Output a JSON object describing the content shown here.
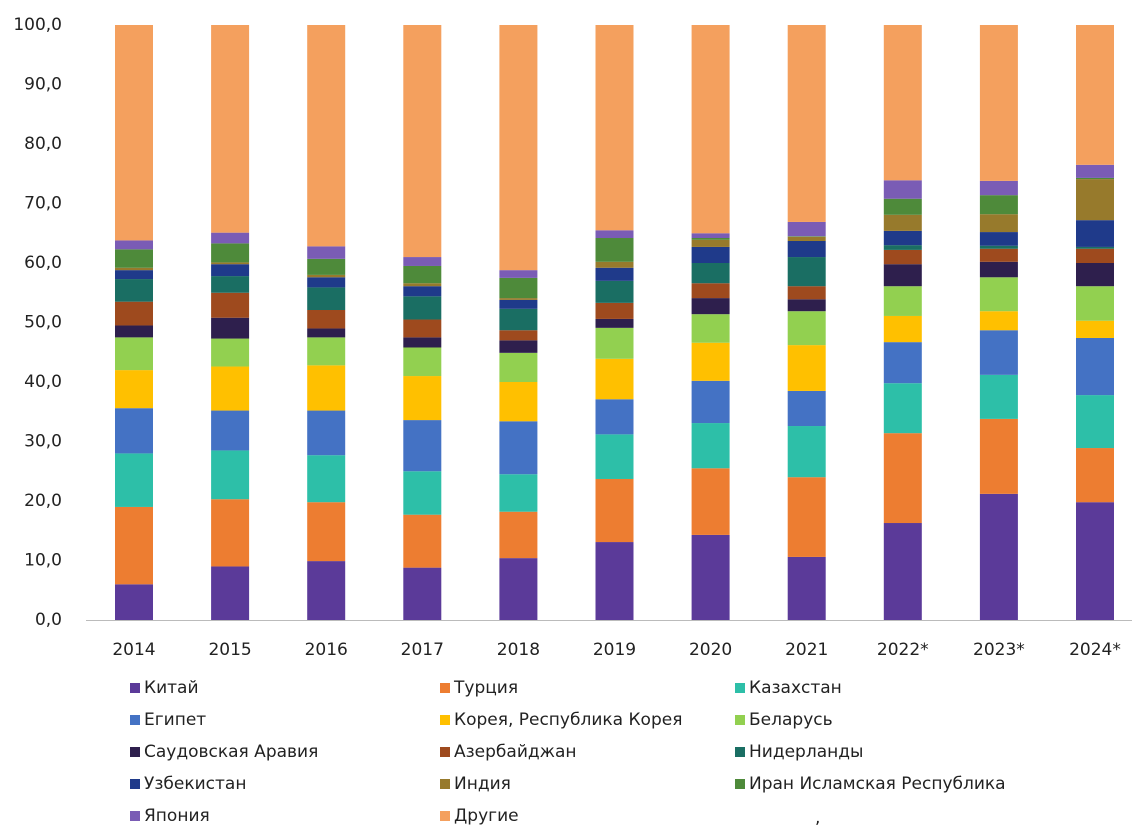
{
  "chart_data": {
    "type": "stacked_bar",
    "categories": [
      "2014",
      "2015",
      "2016",
      "2017",
      "2018",
      "2019",
      "2020",
      "2021",
      "2022*",
      "2023*",
      "2024*"
    ],
    "series": [
      {
        "name": "Китай",
        "color": "#5b3a99",
        "values": [
          6.0,
          9.0,
          9.9,
          8.8,
          10.4,
          13.1,
          14.3,
          10.6,
          16.3,
          21.2,
          19.8
        ]
      },
      {
        "name": "Турция",
        "color": "#ed7d31",
        "values": [
          13.0,
          11.3,
          9.9,
          8.9,
          7.8,
          10.6,
          11.2,
          13.4,
          15.1,
          12.6,
          9.1
        ]
      },
      {
        "name": "Казахстан",
        "color": "#2dbfa8",
        "values": [
          9.0,
          8.2,
          7.9,
          7.3,
          6.3,
          7.5,
          7.6,
          8.6,
          8.4,
          7.4,
          8.9
        ]
      },
      {
        "name": "Египет",
        "color": "#4472c4",
        "values": [
          7.6,
          6.7,
          7.5,
          8.6,
          8.9,
          5.9,
          7.1,
          5.9,
          6.9,
          7.5,
          9.6
        ]
      },
      {
        "name": "Корея, Республика Корея",
        "color": "#ffc000",
        "values": [
          6.4,
          7.4,
          7.6,
          7.4,
          6.6,
          6.8,
          6.4,
          7.7,
          4.4,
          3.2,
          2.9
        ]
      },
      {
        "name": "Беларусь",
        "color": "#92d050",
        "values": [
          5.5,
          4.7,
          4.7,
          4.8,
          4.9,
          5.2,
          4.8,
          5.7,
          5.0,
          5.7,
          5.8
        ]
      },
      {
        "name": "Саудовская Аравия",
        "color": "#2e1f4d",
        "values": [
          2.0,
          3.5,
          1.5,
          1.7,
          2.1,
          1.5,
          2.7,
          2.0,
          3.7,
          2.6,
          3.9
        ]
      },
      {
        "name": "Азербайджан",
        "color": "#9e4a1e",
        "values": [
          4.0,
          4.2,
          3.1,
          3.0,
          1.7,
          2.7,
          2.5,
          2.2,
          2.4,
          2.2,
          2.4
        ]
      },
      {
        "name": "Нидерланды",
        "color": "#1a6e63",
        "values": [
          3.8,
          2.8,
          3.8,
          3.9,
          3.6,
          3.7,
          3.4,
          4.9,
          0.8,
          0.5,
          0.3
        ]
      },
      {
        "name": "Узбекистан",
        "color": "#1f3a8a",
        "values": [
          1.5,
          2.0,
          1.7,
          1.7,
          1.5,
          2.2,
          2.7,
          2.7,
          2.4,
          2.3,
          4.5
        ]
      },
      {
        "name": "Индия",
        "color": "#977a2c",
        "values": [
          0.4,
          0.3,
          0.4,
          0.5,
          0.3,
          1.0,
          1.2,
          0.7,
          2.7,
          3.0,
          6.9
        ]
      },
      {
        "name": "Иран  Исламская Республика",
        "color": "#4e8a3a",
        "values": [
          3.1,
          3.2,
          2.7,
          2.9,
          3.4,
          4.0,
          0.3,
          0.1,
          2.7,
          3.2,
          0.2
        ]
      },
      {
        "name": "Япония",
        "color": "#7a5cb5",
        "values": [
          1.5,
          1.8,
          2.1,
          1.5,
          1.3,
          1.3,
          0.8,
          2.4,
          3.1,
          2.4,
          2.2
        ]
      },
      {
        "name": "Другие",
        "color": "#f4a05e",
        "values": [
          36.2,
          34.9,
          37.2,
          39.0,
          41.2,
          34.5,
          35.0,
          33.1,
          26.1,
          26.2,
          23.5
        ]
      }
    ],
    "ylim": [
      0,
      100
    ],
    "yticks": [
      {
        "value": 0,
        "label": "0,0"
      },
      {
        "value": 10,
        "label": "10,0"
      },
      {
        "value": 20,
        "label": "20,0"
      },
      {
        "value": 30,
        "label": "30,0"
      },
      {
        "value": 40,
        "label": "40,0"
      },
      {
        "value": 50,
        "label": "50,0"
      },
      {
        "value": 60,
        "label": "60,0"
      },
      {
        "value": 70,
        "label": "70,0"
      },
      {
        "value": 80,
        "label": "80,0"
      },
      {
        "value": 90,
        "label": "90,0"
      },
      {
        "value": 100,
        "label": "100,0"
      }
    ],
    "grid": false,
    "legend": "bottom",
    "annotation": ","
  }
}
